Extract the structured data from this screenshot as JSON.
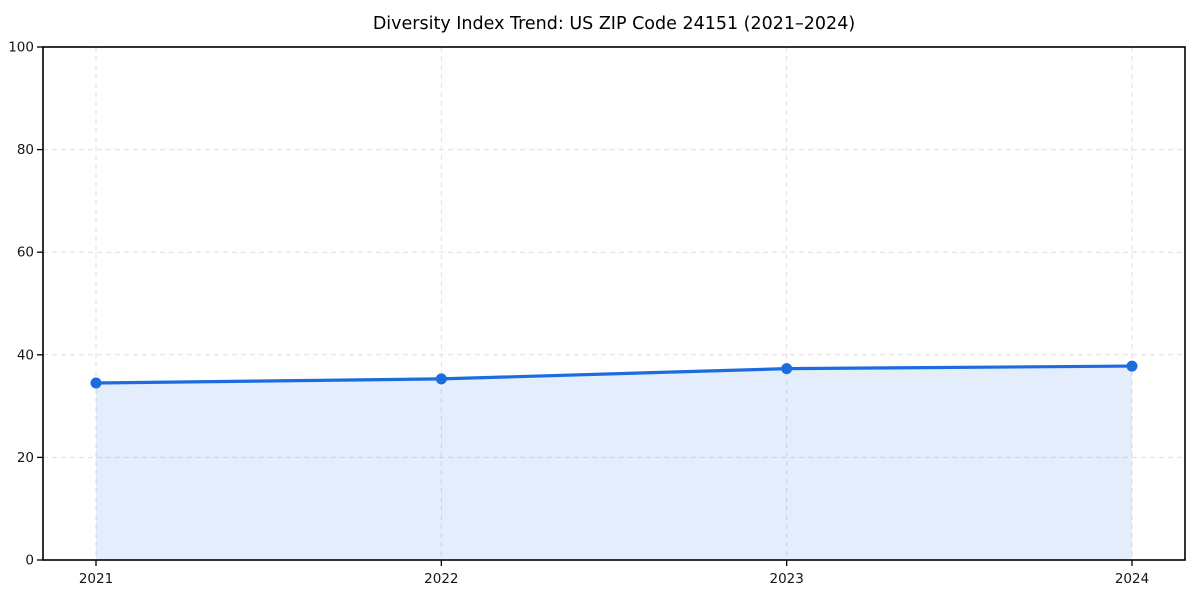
{
  "chart_data": {
    "type": "area",
    "title": "Diversity Index Trend: US ZIP Code 24151 (2021–2024)",
    "categories": [
      "2021",
      "2022",
      "2023",
      "2024"
    ],
    "series": [
      {
        "name": "Diversity Index",
        "values": [
          34.5,
          35.3,
          37.3,
          37.8
        ]
      }
    ],
    "xlabel": "",
    "ylabel": "",
    "ylim": [
      0,
      100
    ],
    "yticks": [
      0,
      20,
      40,
      60,
      80,
      100
    ],
    "grid": "dashed-both-axes",
    "legend_position": "none",
    "marker": "circle",
    "colors": {
      "line": "#1c6cdf",
      "marker": "#1c6cdf",
      "fill": "#1c6cdf",
      "fill_opacity": 0.12,
      "grid": "#dedede",
      "spine": "#000000",
      "text": "#161616",
      "background": "#ffffff"
    }
  }
}
